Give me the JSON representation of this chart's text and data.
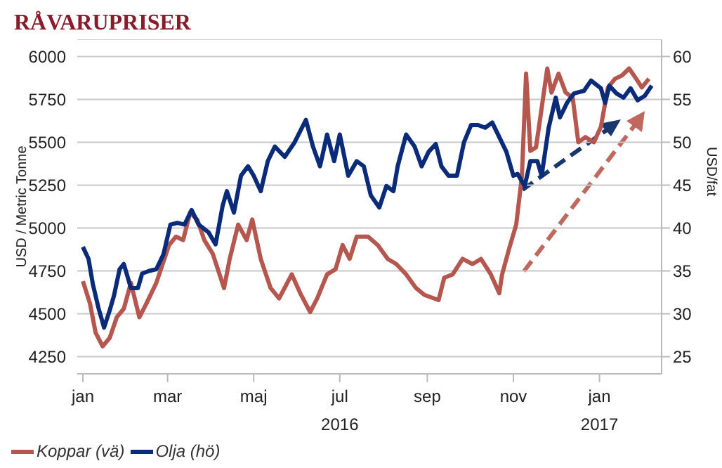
{
  "chart_data": {
    "type": "line",
    "title": "RÅVARUPRISER",
    "ylabel": "USD / Metric Tonne",
    "y2label": "USD/fat",
    "xlim": [
      "2015-12-28",
      "2017-02-14"
    ],
    "xticks": [
      {
        "value": "2016-01-01",
        "label": "jan"
      },
      {
        "value": "2016-03-01",
        "label": "mar"
      },
      {
        "value": "2016-05-01",
        "label": "maj"
      },
      {
        "value": "2016-07-01",
        "label": "jul\n2016"
      },
      {
        "value": "2016-09-01",
        "label": "sep"
      },
      {
        "value": "2016-11-01",
        "label": "nov"
      },
      {
        "value": "2017-01-01",
        "label": "jan\n2017"
      }
    ],
    "ylim": [
      4150,
      6100
    ],
    "yticks": [
      4250,
      4500,
      4750,
      5000,
      5250,
      5500,
      5750,
      6000
    ],
    "y2lim": [
      23,
      62
    ],
    "y2ticks": [
      25,
      30,
      35,
      40,
      45,
      50,
      55,
      60
    ],
    "grid": "y",
    "legend": "bottom left",
    "marker": "none",
    "line_style": "solid",
    "series": [
      {
        "name": "Koppar (vä)",
        "color": "#b5574f",
        "axis": "y",
        "x": [
          "2016-01-01",
          "2016-01-06",
          "2016-01-10",
          "2016-01-15",
          "2016-01-20",
          "2016-01-25",
          "2016-01-30",
          "2016-02-04",
          "2016-02-10",
          "2016-02-15",
          "2016-02-22",
          "2016-03-02",
          "2016-03-07",
          "2016-03-12",
          "2016-03-17",
          "2016-03-22",
          "2016-03-27",
          "2016-04-02",
          "2016-04-10",
          "2016-04-14",
          "2016-04-20",
          "2016-04-26",
          "2016-04-30",
          "2016-05-06",
          "2016-05-13",
          "2016-05-19",
          "2016-05-28",
          "2016-06-03",
          "2016-06-10",
          "2016-06-15",
          "2016-06-22",
          "2016-06-28",
          "2016-07-03",
          "2016-07-08",
          "2016-07-13",
          "2016-07-21",
          "2016-07-28",
          "2016-08-04",
          "2016-08-10",
          "2016-08-17",
          "2016-08-24",
          "2016-08-30",
          "2016-09-09",
          "2016-09-13",
          "2016-09-19",
          "2016-09-26",
          "2016-10-03",
          "2016-10-09",
          "2016-10-16",
          "2016-10-22",
          "2016-10-24",
          "2016-10-29",
          "2016-11-03",
          "2016-11-07",
          "2016-11-10",
          "2016-11-13",
          "2016-11-17",
          "2016-11-20",
          "2016-11-25",
          "2016-11-28",
          "2016-12-03",
          "2016-12-08",
          "2016-12-13",
          "2016-12-17",
          "2016-12-22",
          "2016-12-28",
          "2017-01-02",
          "2017-01-07",
          "2017-01-12",
          "2017-01-17",
          "2017-01-22",
          "2017-01-27",
          "2017-01-31",
          "2017-02-05"
        ],
        "values": [
          4690,
          4560,
          4390,
          4310,
          4360,
          4480,
          4530,
          4680,
          4480,
          4560,
          4680,
          4900,
          4950,
          4930,
          5090,
          5050,
          4930,
          4850,
          4650,
          4820,
          5020,
          4930,
          5050,
          4820,
          4650,
          4590,
          4730,
          4620,
          4510,
          4590,
          4730,
          4760,
          4900,
          4820,
          4950,
          4950,
          4900,
          4820,
          4790,
          4730,
          4650,
          4610,
          4580,
          4710,
          4730,
          4820,
          4790,
          4820,
          4730,
          4620,
          4730,
          4880,
          5020,
          5300,
          5900,
          5450,
          5470,
          5640,
          5930,
          5790,
          5900,
          5790,
          5760,
          5500,
          5530,
          5500,
          5590,
          5820,
          5870,
          5890,
          5930,
          5870,
          5820,
          5870
        ]
      },
      {
        "name": "Olja (hö)",
        "color": "#0a2a7a",
        "axis": "y2",
        "x": [
          "2016-01-01",
          "2016-01-05",
          "2016-01-08",
          "2016-01-12",
          "2016-01-16",
          "2016-01-20",
          "2016-01-23",
          "2016-01-27",
          "2016-01-30",
          "2016-02-04",
          "2016-02-09",
          "2016-02-12",
          "2016-02-17",
          "2016-02-22",
          "2016-02-27",
          "2016-03-03",
          "2016-03-08",
          "2016-03-13",
          "2016-03-18",
          "2016-03-23",
          "2016-03-30",
          "2016-04-04",
          "2016-04-09",
          "2016-04-12",
          "2016-04-17",
          "2016-04-22",
          "2016-04-27",
          "2016-05-01",
          "2016-05-06",
          "2016-05-11",
          "2016-05-16",
          "2016-05-23",
          "2016-05-30",
          "2016-06-07",
          "2016-06-12",
          "2016-06-17",
          "2016-06-22",
          "2016-06-27",
          "2016-07-01",
          "2016-07-07",
          "2016-07-13",
          "2016-07-18",
          "2016-07-23",
          "2016-07-29",
          "2016-08-03",
          "2016-08-08",
          "2016-08-11",
          "2016-08-17",
          "2016-08-23",
          "2016-08-28",
          "2016-09-02",
          "2016-09-07",
          "2016-09-11",
          "2016-09-16",
          "2016-09-22",
          "2016-09-27",
          "2016-10-02",
          "2016-10-07",
          "2016-10-12",
          "2016-10-17",
          "2016-10-22",
          "2016-10-27",
          "2016-11-01",
          "2016-11-04",
          "2016-11-09",
          "2016-11-13",
          "2016-11-18",
          "2016-11-21",
          "2016-11-26",
          "2016-12-01",
          "2016-12-04",
          "2016-12-09",
          "2016-12-14",
          "2016-12-21",
          "2016-12-26",
          "2017-01-02",
          "2017-01-05",
          "2017-01-08",
          "2017-01-13",
          "2017-01-18",
          "2017-01-23",
          "2017-01-28",
          "2017-02-02",
          "2017-02-07"
        ],
        "values": [
          37.8,
          36.4,
          33.5,
          30.7,
          28.4,
          30.4,
          32.1,
          35.2,
          35.8,
          33.0,
          33.0,
          34.7,
          35.0,
          35.2,
          36.9,
          40.4,
          40.6,
          40.4,
          42.1,
          40.4,
          39.5,
          38.1,
          42.6,
          44.3,
          41.8,
          46.1,
          47.2,
          46.1,
          44.3,
          47.8,
          49.5,
          48.3,
          50.0,
          52.6,
          49.5,
          47.2,
          50.9,
          47.8,
          50.9,
          46.1,
          47.8,
          47.2,
          43.8,
          42.4,
          44.9,
          44.3,
          47.2,
          50.9,
          49.5,
          47.2,
          48.9,
          49.8,
          47.2,
          46.1,
          46.1,
          50.0,
          52.0,
          52.0,
          51.7,
          52.3,
          50.6,
          48.9,
          46.1,
          46.3,
          44.9,
          47.8,
          47.8,
          46.1,
          51.7,
          55.2,
          52.9,
          54.6,
          55.7,
          56.0,
          57.2,
          56.3,
          54.6,
          56.6,
          55.7,
          55.2,
          56.3,
          54.9,
          55.4,
          56.6
        ]
      }
    ]
  }
}
